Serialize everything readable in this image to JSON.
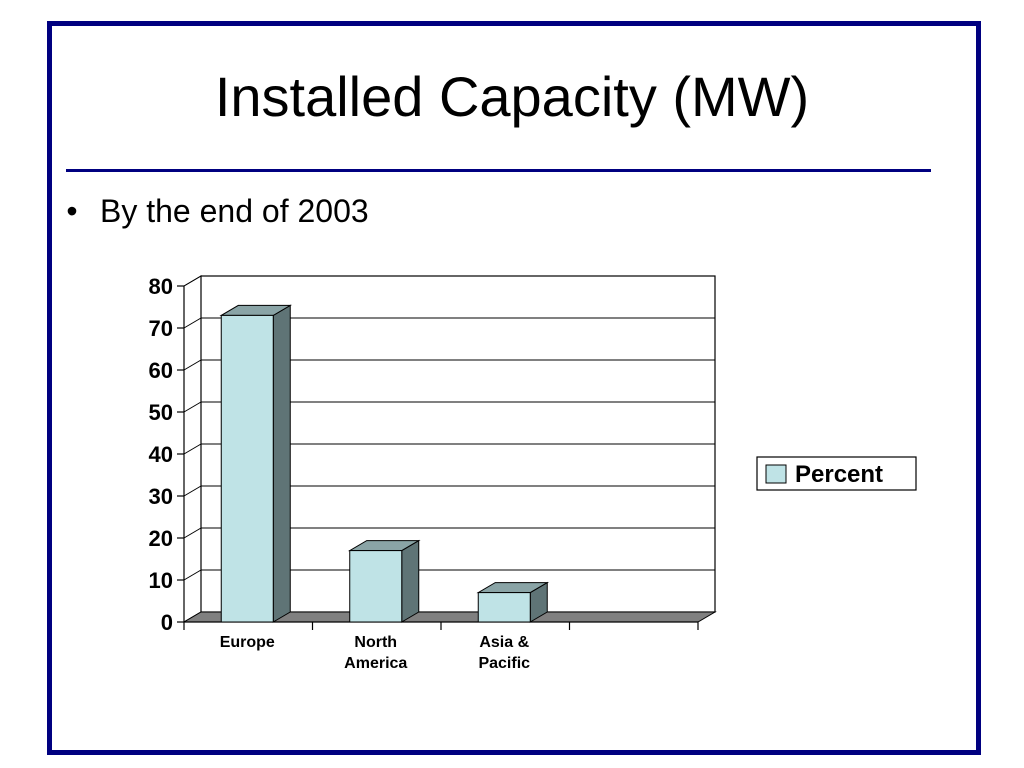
{
  "slide": {
    "title": "Installed Capacity (MW)",
    "bullet": "By the end of 2003",
    "bullet_symbol": "•"
  },
  "colors": {
    "frame": "#000080",
    "bar_face": "#bfe3e6",
    "bar_side": "#5f7476",
    "bar_top": "#8aa4a6",
    "floor": "#808080"
  },
  "chart_data": {
    "type": "bar",
    "categories": [
      [
        "Europe"
      ],
      [
        "North",
        "America"
      ],
      [
        "Asia &",
        "Pacific"
      ],
      [
        ""
      ]
    ],
    "series": [
      {
        "name": "Percent",
        "values": [
          73,
          17,
          7,
          null
        ]
      }
    ],
    "ylim": [
      0,
      80
    ],
    "yticks": [
      "0",
      "10",
      "20",
      "30",
      "40",
      "50",
      "60",
      "70",
      "80"
    ],
    "grid": true,
    "legend": "right",
    "style": "3d"
  }
}
